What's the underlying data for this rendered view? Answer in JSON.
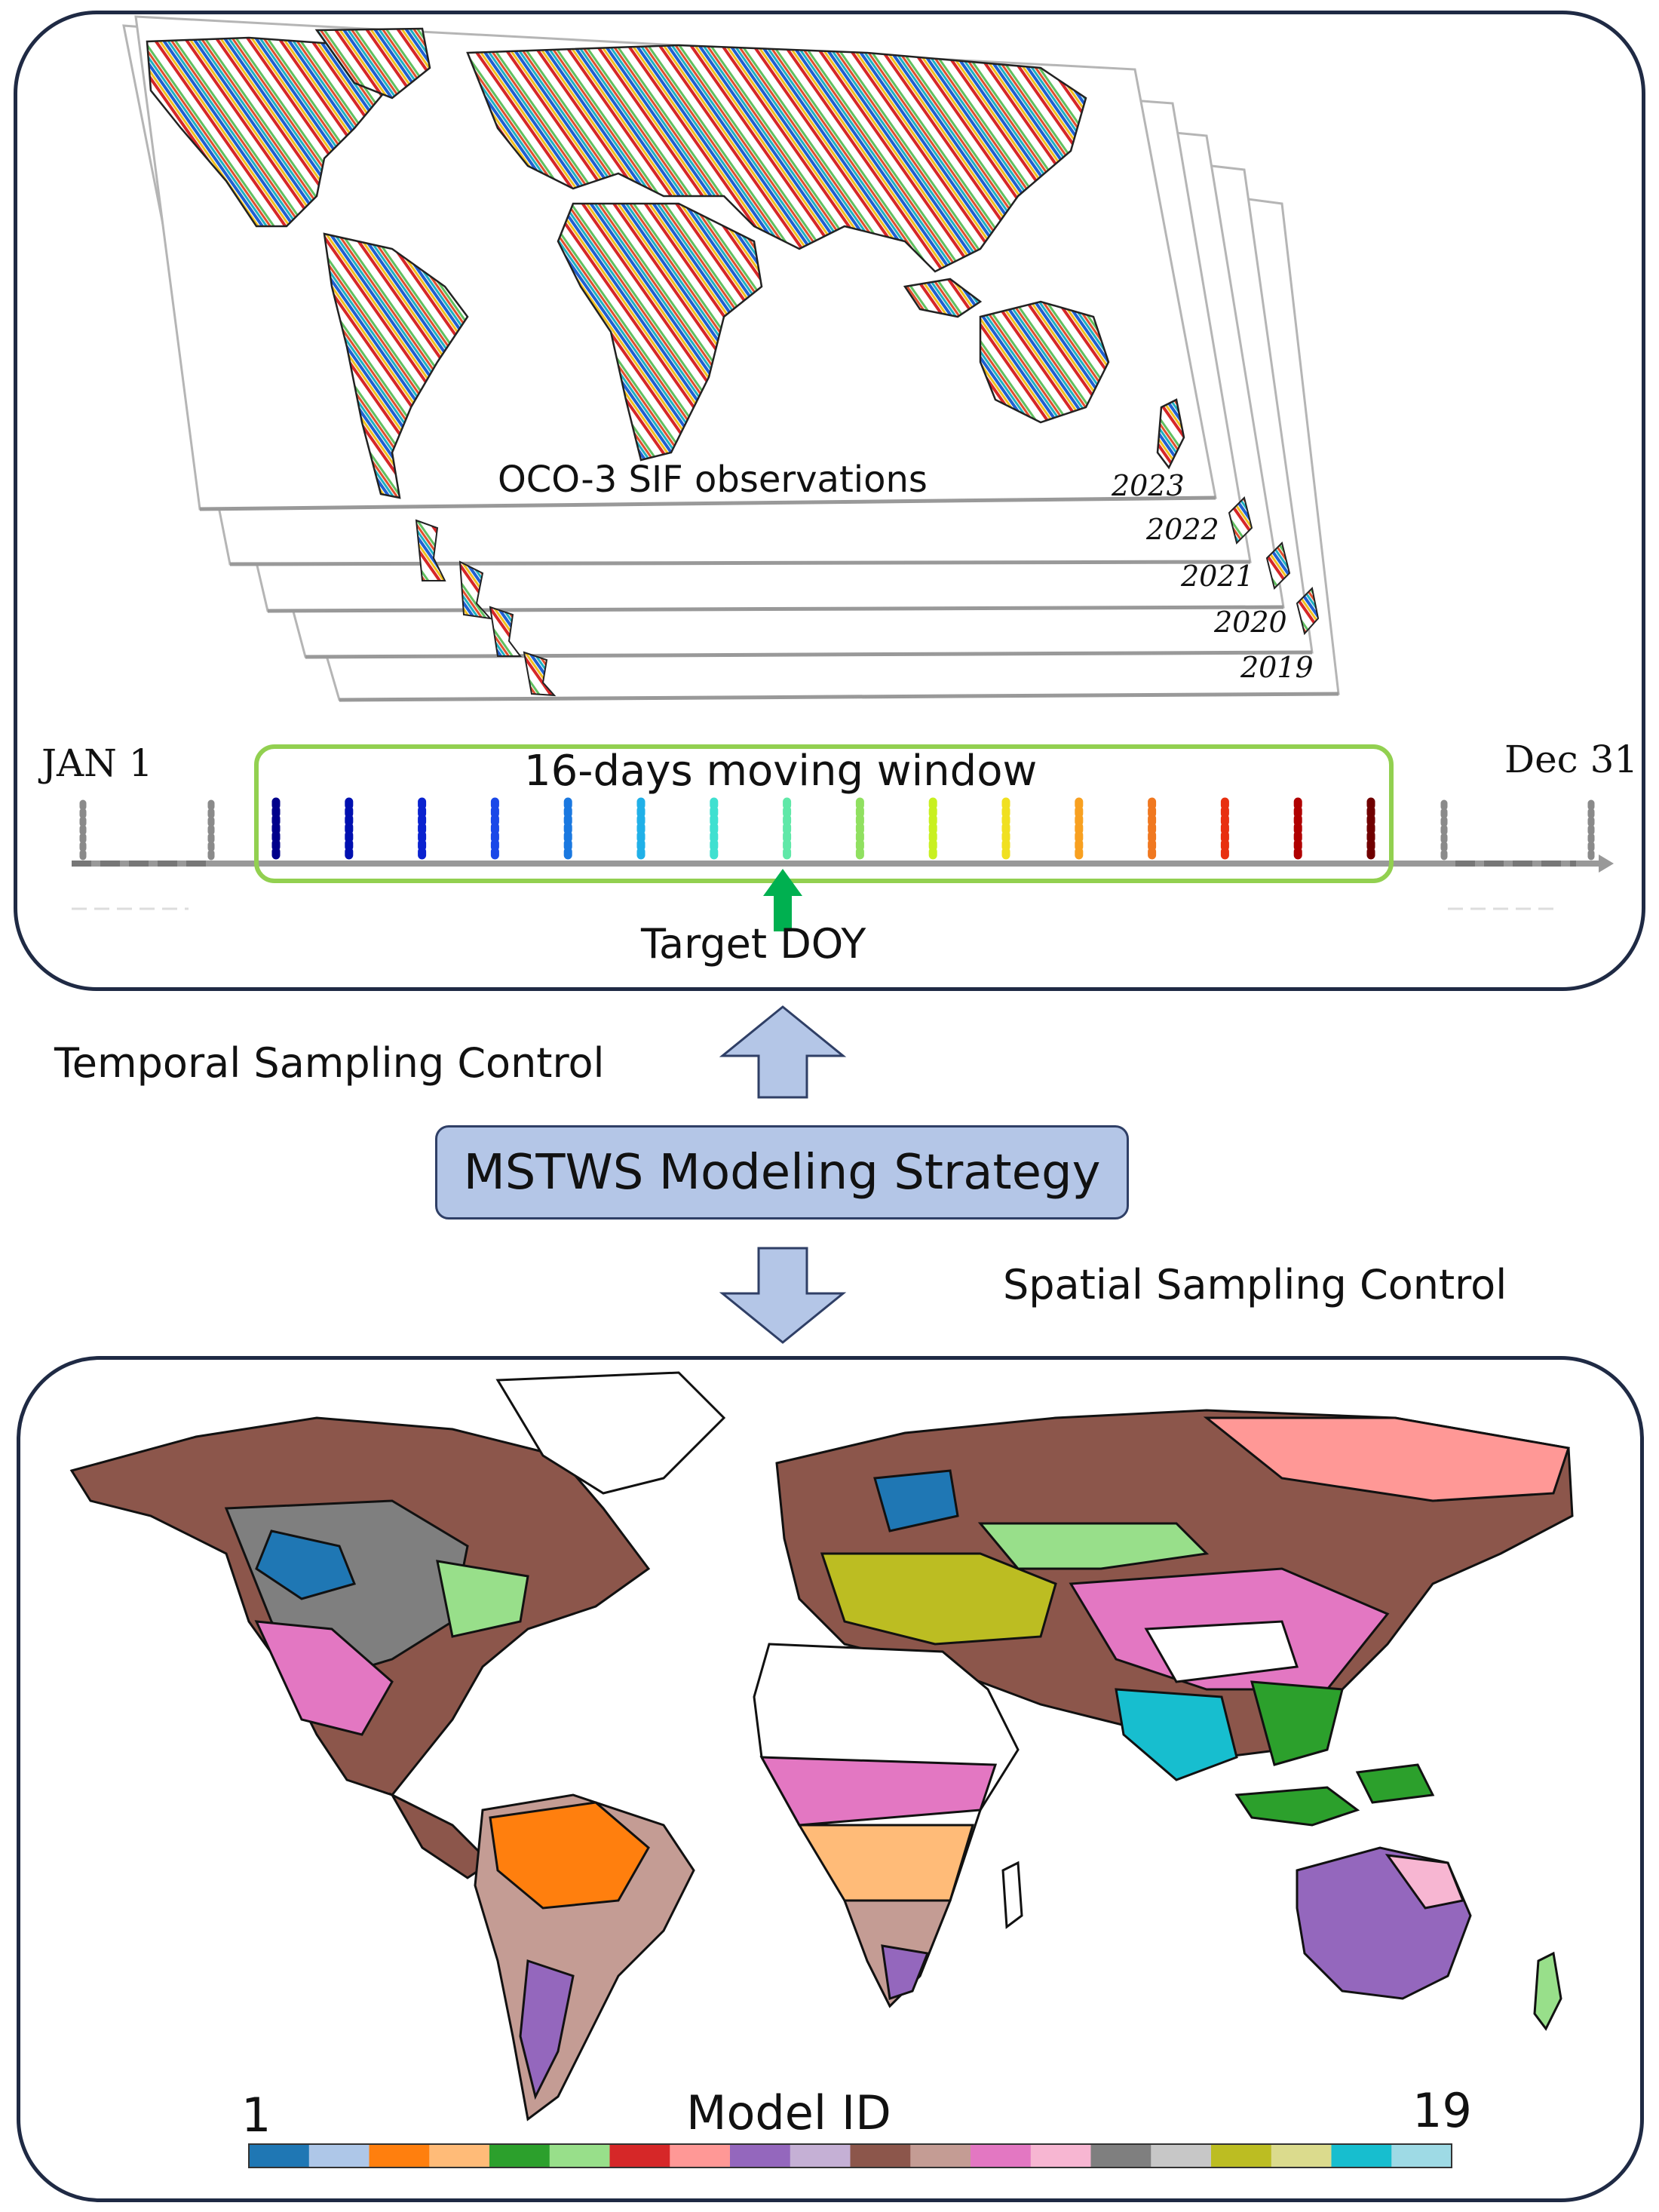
{
  "temporal_panel": {
    "stack_title": "OCO-3 SIF observations",
    "years": [
      "2023",
      "2022",
      "2021",
      "2020",
      "2019"
    ],
    "timeline": {
      "start_label": "JAN 1",
      "end_label": "Dec 31",
      "window_label": "16-days moving window",
      "target_label": "Target DOY",
      "window_days": 16,
      "day_colors": [
        "#00008b",
        "#0010b0",
        "#0a22d0",
        "#1a48e8",
        "#1a78e0",
        "#20b0e8",
        "#40e0d0",
        "#60e8a8",
        "#90e060",
        "#c8f020",
        "#f0e020",
        "#f8a020",
        "#f07820",
        "#e83010",
        "#b00000",
        "#700000"
      ],
      "window_border_color": "#92d050",
      "target_arrow_color": "#00b050"
    }
  },
  "middle": {
    "temporal_control": "Temporal Sampling Control",
    "strategy": "MSTWS Modeling Strategy",
    "spatial_control": "Spatial Sampling Control"
  },
  "spatial_panel": {
    "colorbar_title": "Model ID",
    "colorbar_min": "1",
    "colorbar_max": "19",
    "model_colors": [
      "#1f77b4",
      "#aec7e8",
      "#ff7f0e",
      "#ffbb78",
      "#2ca02c",
      "#98df8a",
      "#d62728",
      "#ff9896",
      "#9467bd",
      "#c5b0d5",
      "#8c564b",
      "#c49c94",
      "#e377c2",
      "#f7b6d2",
      "#7f7f7f",
      "#c7c7c7",
      "#bcbd22",
      "#dbdb8d",
      "#17becf",
      "#9edae5"
    ]
  }
}
